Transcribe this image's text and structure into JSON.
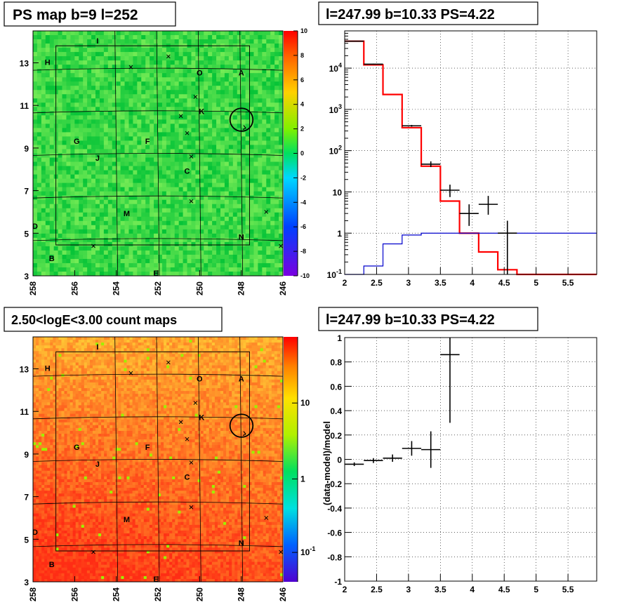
{
  "panels": {
    "ps_map_title": "PS map b=9 l=252",
    "count_map_title": "2.50<logE<3.00 count maps",
    "spectrum_title": "l=247.99 b=10.33 PS=4.22",
    "residual_title": "l=247.99 b=10.33 PS=4.22"
  },
  "colors": {
    "frame": "#000000",
    "model_line": "#ff0000",
    "background_line": "#0000cc",
    "data_points": "#000000"
  },
  "chart_data": [
    {
      "type": "heatmap",
      "name": "ps_map",
      "title": "PS map b=9 l=252",
      "x_ticks": [
        "258",
        "256",
        "254",
        "252",
        "250",
        "248",
        "246"
      ],
      "x_reversed": true,
      "xlim": [
        258.0,
        246.0
      ],
      "y_ticks": [
        "3",
        "5",
        "7",
        "9",
        "11",
        "13"
      ],
      "ylim": [
        3.0,
        14.5
      ],
      "colorbar": {
        "scale": "linear",
        "range": [
          -10,
          10
        ],
        "ticks": [
          "10",
          "8",
          "6",
          "4",
          "2",
          "0",
          "-2",
          "-4",
          "-6",
          "-8",
          "-10"
        ]
      },
      "sources": [
        {
          "label": "I",
          "l": 254.9,
          "b": 13.9
        },
        {
          "label": "H",
          "l": 257.3,
          "b": 12.9
        },
        {
          "label": "O",
          "l": 250.0,
          "b": 12.4
        },
        {
          "label": "A",
          "l": 248.0,
          "b": 12.4
        },
        {
          "label": "K",
          "l": 249.9,
          "b": 10.6
        },
        {
          "label": "G",
          "l": 255.9,
          "b": 9.2
        },
        {
          "label": "F",
          "l": 252.5,
          "b": 9.2
        },
        {
          "label": "J",
          "l": 254.9,
          "b": 8.4
        },
        {
          "label": "C",
          "l": 250.6,
          "b": 7.8
        },
        {
          "label": "M",
          "l": 253.5,
          "b": 5.8
        },
        {
          "label": "D",
          "l": 257.9,
          "b": 5.2
        },
        {
          "label": "N",
          "l": 248.0,
          "b": 4.7
        },
        {
          "label": "B",
          "l": 257.1,
          "b": 3.7
        },
        {
          "label": "E",
          "l": 252.1,
          "b": 3.0
        }
      ],
      "markers": [
        {
          "l": 251.5,
          "b": 13.3
        },
        {
          "l": 253.3,
          "b": 12.8
        },
        {
          "l": 250.2,
          "b": 11.4
        },
        {
          "l": 250.9,
          "b": 10.5
        },
        {
          "l": 250.6,
          "b": 9.7
        },
        {
          "l": 250.4,
          "b": 8.6
        },
        {
          "l": 250.4,
          "b": 6.5
        },
        {
          "l": 246.8,
          "b": 6.0
        },
        {
          "l": 255.1,
          "b": 4.4
        },
        {
          "l": 246.1,
          "b": 4.4
        }
      ],
      "circle": {
        "l": 247.99,
        "b": 10.33,
        "r": 0.55
      }
    },
    {
      "type": "heatmap",
      "name": "count_map",
      "title": "2.50<logE<3.00 count maps",
      "x_ticks": [
        "258",
        "256",
        "254",
        "252",
        "250",
        "248",
        "246"
      ],
      "x_reversed": true,
      "xlim": [
        258.0,
        246.0
      ],
      "y_ticks": [
        "3",
        "5",
        "7",
        "9",
        "11",
        "13"
      ],
      "ylim": [
        3.0,
        14.5
      ],
      "colorbar": {
        "scale": "log",
        "ticks": [
          "10",
          "1",
          "10^-1"
        ]
      }
    },
    {
      "type": "line",
      "name": "spectrum",
      "title": "l=247.99 b=10.33 PS=4.22",
      "xlim": [
        2.0,
        5.95
      ],
      "x_ticks": [
        "2",
        "2.5",
        "3",
        "3.5",
        "4",
        "4.5",
        "5",
        "5.5"
      ],
      "y_scale": "log",
      "ylim": [
        0.1,
        80000
      ],
      "y_ticks": [
        "10^-1",
        "1",
        "10",
        "10^2",
        "10^3",
        "10^4"
      ],
      "grid": true,
      "series": [
        {
          "role": "model",
          "color": "#ff0000",
          "step_edges": [
            2.0,
            2.3,
            2.6,
            2.9,
            3.2,
            3.5,
            3.8,
            4.1,
            4.4,
            4.7,
            5.0,
            5.3,
            5.6,
            5.95
          ],
          "values": [
            45000,
            12000,
            2300,
            360,
            42,
            6,
            1.0,
            0.35,
            0.13,
            0.1,
            0.1,
            0.1,
            0.1
          ]
        },
        {
          "role": "background",
          "color": "#0000cc",
          "step_edges": [
            2.0,
            2.3,
            2.6,
            2.9,
            3.2,
            3.5,
            3.8,
            4.1,
            4.4,
            4.7,
            5.0,
            5.3,
            5.6,
            5.95
          ],
          "values": [
            0.08,
            0.16,
            0.55,
            0.9,
            1.0,
            1.0,
            1.0,
            1.0,
            1.0,
            1.0,
            1.0,
            1.0,
            1.0
          ]
        },
        {
          "role": "data",
          "color": "#000000",
          "points": [
            {
              "x": 2.15,
              "y": 45000,
              "xerr": 0.15,
              "ylo": 44000,
              "yhi": 46000
            },
            {
              "x": 2.45,
              "y": 12500,
              "xerr": 0.15,
              "ylo": 12200,
              "yhi": 12800
            },
            {
              "x": 3.05,
              "y": 400,
              "xerr": 0.15,
              "ylo": 380,
              "yhi": 420
            },
            {
              "x": 3.35,
              "y": 47,
              "xerr": 0.15,
              "ylo": 40,
              "yhi": 55
            },
            {
              "x": 3.65,
              "y": 11,
              "xerr": 0.15,
              "ylo": 7.5,
              "yhi": 15
            },
            {
              "x": 3.95,
              "y": 3,
              "xerr": 0.15,
              "ylo": 1.5,
              "yhi": 5
            },
            {
              "x": 4.25,
              "y": 5,
              "xerr": 0.15,
              "ylo": 2.8,
              "yhi": 8
            },
            {
              "x": 4.55,
              "y": 1,
              "xerr": 0.15,
              "ylo": 0.1,
              "yhi": 2
            }
          ]
        }
      ]
    },
    {
      "type": "scatter",
      "name": "residuals",
      "title": "l=247.99 b=10.33 PS=4.22",
      "ylabel": "(data-model)/model",
      "xlim": [
        2.0,
        5.95
      ],
      "x_ticks": [
        "2",
        "2.5",
        "3",
        "3.5",
        "4",
        "4.5",
        "5",
        "5.5"
      ],
      "ylim": [
        -1.0,
        1.0
      ],
      "y_ticks": [
        "1",
        "0.8",
        "0.6",
        "0.4",
        "0.2",
        "0",
        "-0.2",
        "-0.4",
        "-0.6",
        "-0.8",
        "-1"
      ],
      "grid": true,
      "points": [
        {
          "x": 2.15,
          "y": -0.04,
          "xerr": 0.15,
          "yerr": 0.015
        },
        {
          "x": 2.45,
          "y": -0.01,
          "xerr": 0.15,
          "yerr": 0.02
        },
        {
          "x": 2.75,
          "y": 0.01,
          "xerr": 0.15,
          "yerr": 0.03
        },
        {
          "x": 3.05,
          "y": 0.09,
          "xerr": 0.15,
          "yerr": 0.06
        },
        {
          "x": 3.35,
          "y": 0.08,
          "xerr": 0.15,
          "yerr": 0.15
        },
        {
          "x": 3.65,
          "y": 0.86,
          "xerr": 0.15,
          "yerr": 0.56
        }
      ]
    }
  ]
}
